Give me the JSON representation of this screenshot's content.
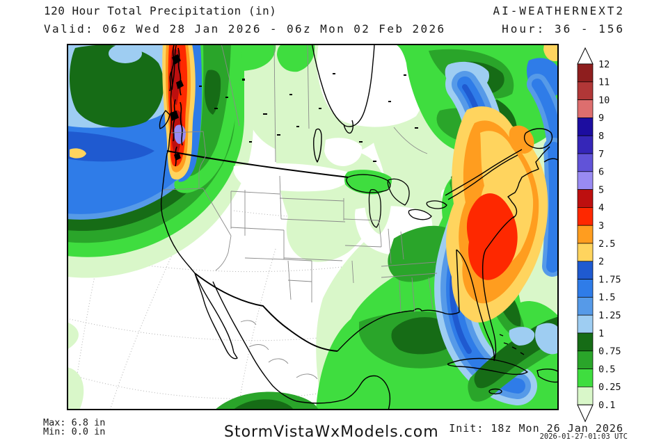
{
  "header": {
    "title": "120 Hour Total Precipitation (in)",
    "valid": "Valid: 06z Wed 28 Jan 2026 - 06z Mon 02 Feb 2026",
    "model": "AI-WEATHERNEXT2",
    "hour": "Hour: 36 - 156"
  },
  "footer": {
    "max": "Max: 6.8 in",
    "min": "Min: 0.0 in",
    "brand": "StormVistaWxModels.com",
    "init": "Init: 18z Mon 26 Jan 2026",
    "generated": "2026-01-27-01:03 UTC"
  },
  "colorbar": {
    "units": "in",
    "levels": [
      "12",
      "11",
      "10",
      "9",
      "8",
      "7",
      "6",
      "5",
      "4",
      "3",
      "2.5",
      "2",
      "1.75",
      "1.5",
      "1.25",
      "1",
      "0.75",
      "0.5",
      "0.25",
      "0.1"
    ],
    "cell_colors": [
      "#8e1e1e",
      "#b13737",
      "#dd6e6e",
      "#1c0da0",
      "#3526b8",
      "#6153d8",
      "#998bf2",
      "#bd0f0f",
      "#fe2800",
      "#ff9d1f",
      "#ffd45e",
      "#1f5ad0",
      "#2f7ce8",
      "#569ae8",
      "#9ecdf2",
      "#166c16",
      "#2aa52a",
      "#3fdd3f",
      "#d9f7c9"
    ]
  },
  "palette": {
    "p010": "#d9f7c9",
    "p025": "#3fdd3f",
    "p050": "#2aa52a",
    "p075": "#166c16",
    "p100": "#9ecdf2",
    "p125": "#569ae8",
    "p150": "#2f7ce8",
    "p175": "#1f5ad0",
    "p200": "#ffd45e",
    "p250": "#ff9d1f",
    "p300": "#fe2800",
    "p400": "#bd0f0f",
    "p500": "#998bf2",
    "p600": "#6153d8",
    "p700": "#3526b8",
    "p800": "#1c0da0",
    "p900": "#dd6e6e",
    "p1000": "#b13737",
    "p1100": "#8e1e1e"
  },
  "map": {
    "region": "North America",
    "features": [
      "pacific-precip-band",
      "pnw-heavy-precip-band",
      "canada-light-precip",
      "atlantic-offshore-storm",
      "gulf-of-mexico-precip"
    ]
  }
}
